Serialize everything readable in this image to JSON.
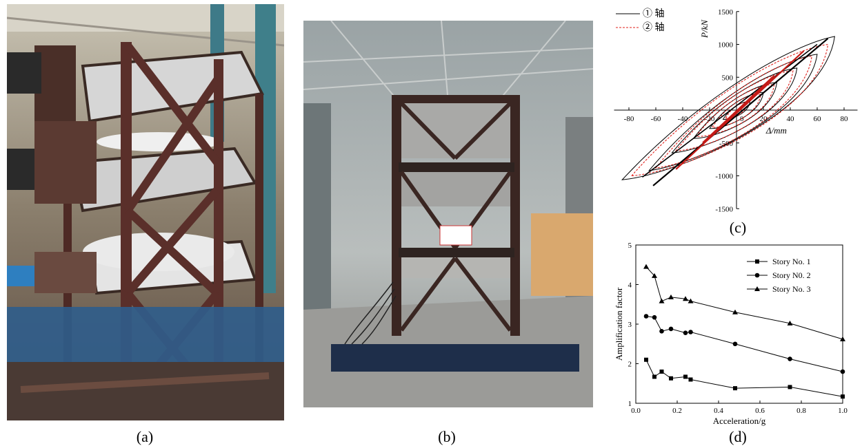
{
  "captions": {
    "a": "(a)",
    "b": "(b)",
    "c": "(c)",
    "d": "(d)"
  },
  "photo_b_sign": "",
  "chart_data": [
    {
      "type": "line",
      "panel": "c",
      "xlabel": "Δ/mm",
      "ylabel": "P/kN",
      "xlim": [
        -90,
        90
      ],
      "ylim": [
        -1500,
        1500
      ],
      "x_ticks": [
        -80,
        -60,
        -40,
        -20,
        0,
        20,
        40,
        60,
        80
      ],
      "y_ticks": [
        -1500,
        -1000,
        -500,
        0,
        500,
        1000,
        1500
      ],
      "grid": false,
      "legend": "top-left",
      "series": [
        {
          "name": "① 轴",
          "color": "#000000",
          "style": "solid",
          "loops": [
            [
              10,
              130
            ],
            [
              20,
              270
            ],
            [
              30,
              420
            ],
            [
              45,
              640
            ],
            [
              60,
              850
            ],
            [
              73,
              1120
            ]
          ],
          "neg_loops": [
            [
              -10,
              -140
            ],
            [
              -20,
              -280
            ],
            [
              -32,
              -430
            ],
            [
              -48,
              -650
            ],
            [
              -65,
              -920
            ],
            [
              -85,
              -1060
            ]
          ]
        },
        {
          "name": "② 轴",
          "color": "#e0201b",
          "style": "dashed",
          "loops": [
            [
              8,
              110
            ],
            [
              18,
              240
            ],
            [
              28,
              390
            ],
            [
              42,
              600
            ],
            [
              56,
              820
            ],
            [
              68,
              1000
            ]
          ],
          "neg_loops": [
            [
              -8,
              -120
            ],
            [
              -18,
              -260
            ],
            [
              -30,
              -400
            ],
            [
              -45,
              -620
            ],
            [
              -60,
              -880
            ],
            [
              -78,
              -1000
            ]
          ]
        }
      ]
    },
    {
      "type": "line",
      "panel": "d",
      "xlabel": "Acceleration/g",
      "ylabel": "Amplification factor",
      "xlim": [
        0.0,
        1.0
      ],
      "ylim": [
        1,
        5
      ],
      "x_ticks": [
        0.0,
        0.2,
        0.4,
        0.6,
        0.8,
        1.0
      ],
      "y_ticks": [
        1,
        2,
        3,
        4,
        5
      ],
      "legend": "top-right",
      "grid": false,
      "series": [
        {
          "name": "Story No. 1",
          "marker": "square",
          "x": [
            0.05,
            0.09,
            0.125,
            0.17,
            0.24,
            0.265,
            0.48,
            0.745,
            1.0
          ],
          "y": [
            2.1,
            1.67,
            1.8,
            1.63,
            1.67,
            1.6,
            1.38,
            1.41,
            1.17
          ]
        },
        {
          "name": "Story N0. 2",
          "marker": "circle",
          "x": [
            0.05,
            0.09,
            0.125,
            0.17,
            0.24,
            0.265,
            0.48,
            0.745,
            1.0
          ],
          "y": [
            3.2,
            3.17,
            2.82,
            2.88,
            2.78,
            2.8,
            2.5,
            2.12,
            1.8
          ]
        },
        {
          "name": "Story No. 3",
          "marker": "triangle",
          "x": [
            0.05,
            0.09,
            0.125,
            0.17,
            0.24,
            0.265,
            0.48,
            0.745,
            1.0
          ],
          "y": [
            4.45,
            4.22,
            3.58,
            3.68,
            3.64,
            3.58,
            3.3,
            3.02,
            2.62
          ]
        }
      ]
    }
  ]
}
